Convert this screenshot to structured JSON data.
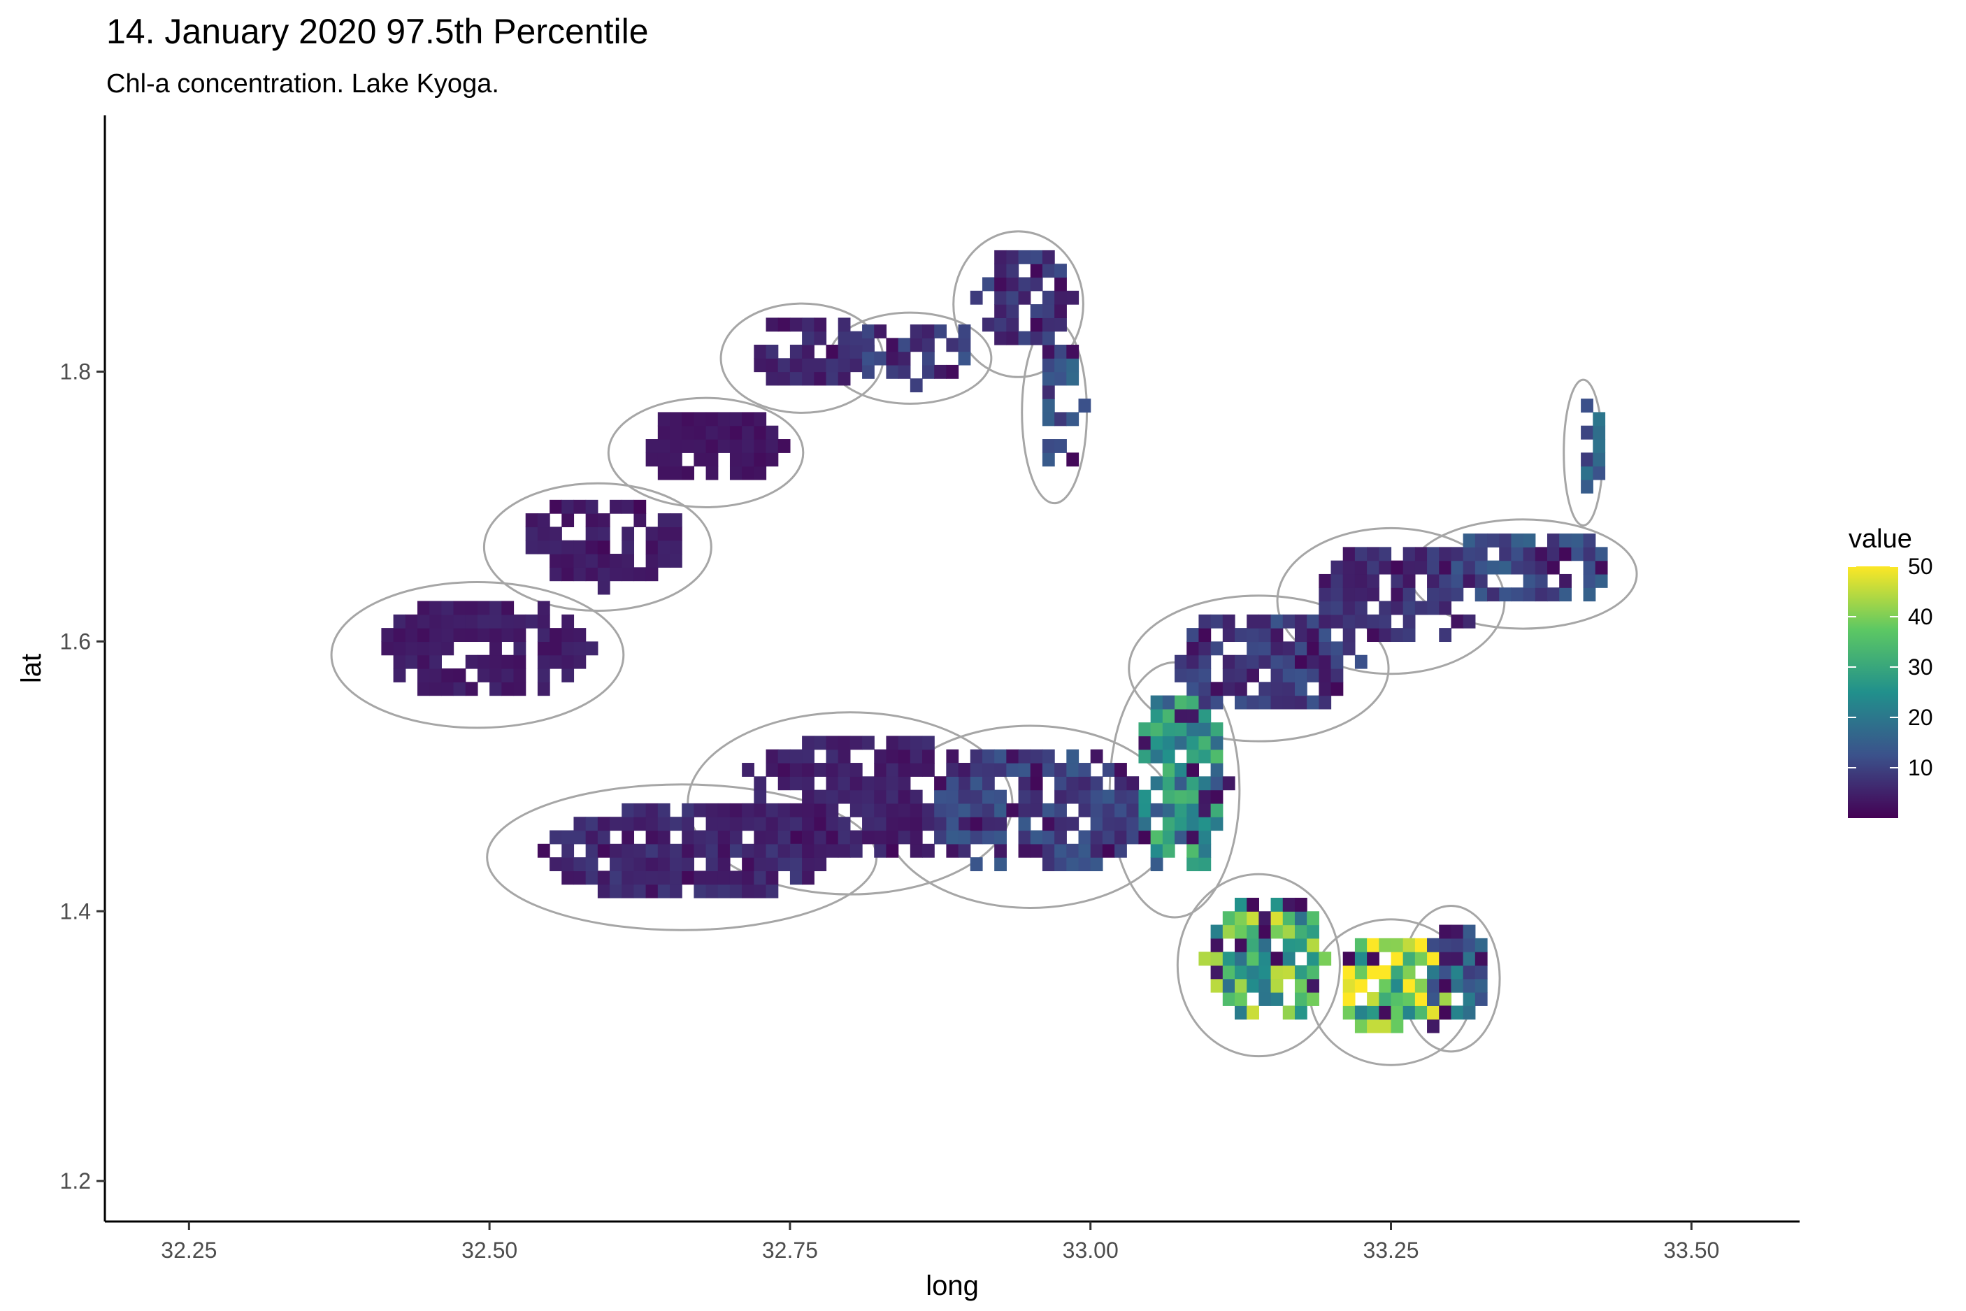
{
  "chart_data": {
    "type": "heatmap",
    "title": "14. January 2020 97.5th Percentile",
    "subtitle": "Chl-a concentration. Lake Kyoga.",
    "xlabel": "long",
    "ylabel": "lat",
    "xlim": [
      32.18,
      33.59
    ],
    "ylim": [
      1.17,
      1.99
    ],
    "x_ticks": [
      {
        "value": 32.25,
        "label": "32.25"
      },
      {
        "value": 32.5,
        "label": "32.50"
      },
      {
        "value": 32.75,
        "label": "32.75"
      },
      {
        "value": 33.0,
        "label": "33.00"
      },
      {
        "value": 33.25,
        "label": "33.25"
      },
      {
        "value": 33.5,
        "label": "33.50"
      }
    ],
    "y_ticks": [
      {
        "value": 1.2,
        "label": "1.2"
      },
      {
        "value": 1.4,
        "label": "1.4"
      },
      {
        "value": 1.6,
        "label": "1.6"
      },
      {
        "value": 1.8,
        "label": "1.8"
      }
    ],
    "grid": false,
    "legend": {
      "title": "value",
      "position": "right",
      "min": 0,
      "max": 50,
      "ticks": [
        {
          "value": 10,
          "label": "10"
        },
        {
          "value": 20,
          "label": "20"
        },
        {
          "value": 30,
          "label": "30"
        },
        {
          "value": 40,
          "label": "40"
        },
        {
          "value": 50,
          "label": "50"
        }
      ],
      "palette": [
        "#440154",
        "#3b528b",
        "#21908c",
        "#5dc863",
        "#fde725"
      ]
    },
    "outline_color": "#a6a6a6",
    "cell_size": [
      0.01,
      0.01
    ],
    "regions": [
      {
        "cx": 32.49,
        "cy": 1.59,
        "rx": 0.09,
        "ry": 0.04,
        "value": 4
      },
      {
        "cx": 32.59,
        "cy": 1.67,
        "rx": 0.07,
        "ry": 0.035,
        "value": 4
      },
      {
        "cx": 32.68,
        "cy": 1.74,
        "rx": 0.06,
        "ry": 0.03,
        "value": 3
      },
      {
        "cx": 32.76,
        "cy": 1.81,
        "rx": 0.05,
        "ry": 0.03,
        "value": 6
      },
      {
        "cx": 32.85,
        "cy": 1.81,
        "rx": 0.05,
        "ry": 0.025,
        "value": 9
      },
      {
        "cx": 32.97,
        "cy": 1.77,
        "rx": 0.02,
        "ry": 0.05,
        "value": 12
      },
      {
        "cx": 32.94,
        "cy": 1.85,
        "rx": 0.04,
        "ry": 0.04,
        "value": 8
      },
      {
        "cx": 32.66,
        "cy": 1.44,
        "rx": 0.12,
        "ry": 0.04,
        "value": 6
      },
      {
        "cx": 32.8,
        "cy": 1.48,
        "rx": 0.1,
        "ry": 0.05,
        "value": 5
      },
      {
        "cx": 32.95,
        "cy": 1.47,
        "rx": 0.09,
        "ry": 0.05,
        "value": 10
      },
      {
        "cx": 33.07,
        "cy": 1.49,
        "rx": 0.04,
        "ry": 0.07,
        "value": 24
      },
      {
        "cx": 33.14,
        "cy": 1.58,
        "rx": 0.08,
        "ry": 0.04,
        "value": 9
      },
      {
        "cx": 33.25,
        "cy": 1.63,
        "rx": 0.07,
        "ry": 0.04,
        "value": 7
      },
      {
        "cx": 33.36,
        "cy": 1.65,
        "rx": 0.07,
        "ry": 0.03,
        "value": 11
      },
      {
        "cx": 33.14,
        "cy": 1.36,
        "rx": 0.05,
        "ry": 0.05,
        "value": 33
      },
      {
        "cx": 33.25,
        "cy": 1.34,
        "rx": 0.05,
        "ry": 0.04,
        "value": 40
      },
      {
        "cx": 33.3,
        "cy": 1.35,
        "rx": 0.03,
        "ry": 0.04,
        "value": 16
      },
      {
        "cx": 33.41,
        "cy": 1.74,
        "rx": 0.012,
        "ry": 0.04,
        "value": 14
      }
    ]
  }
}
